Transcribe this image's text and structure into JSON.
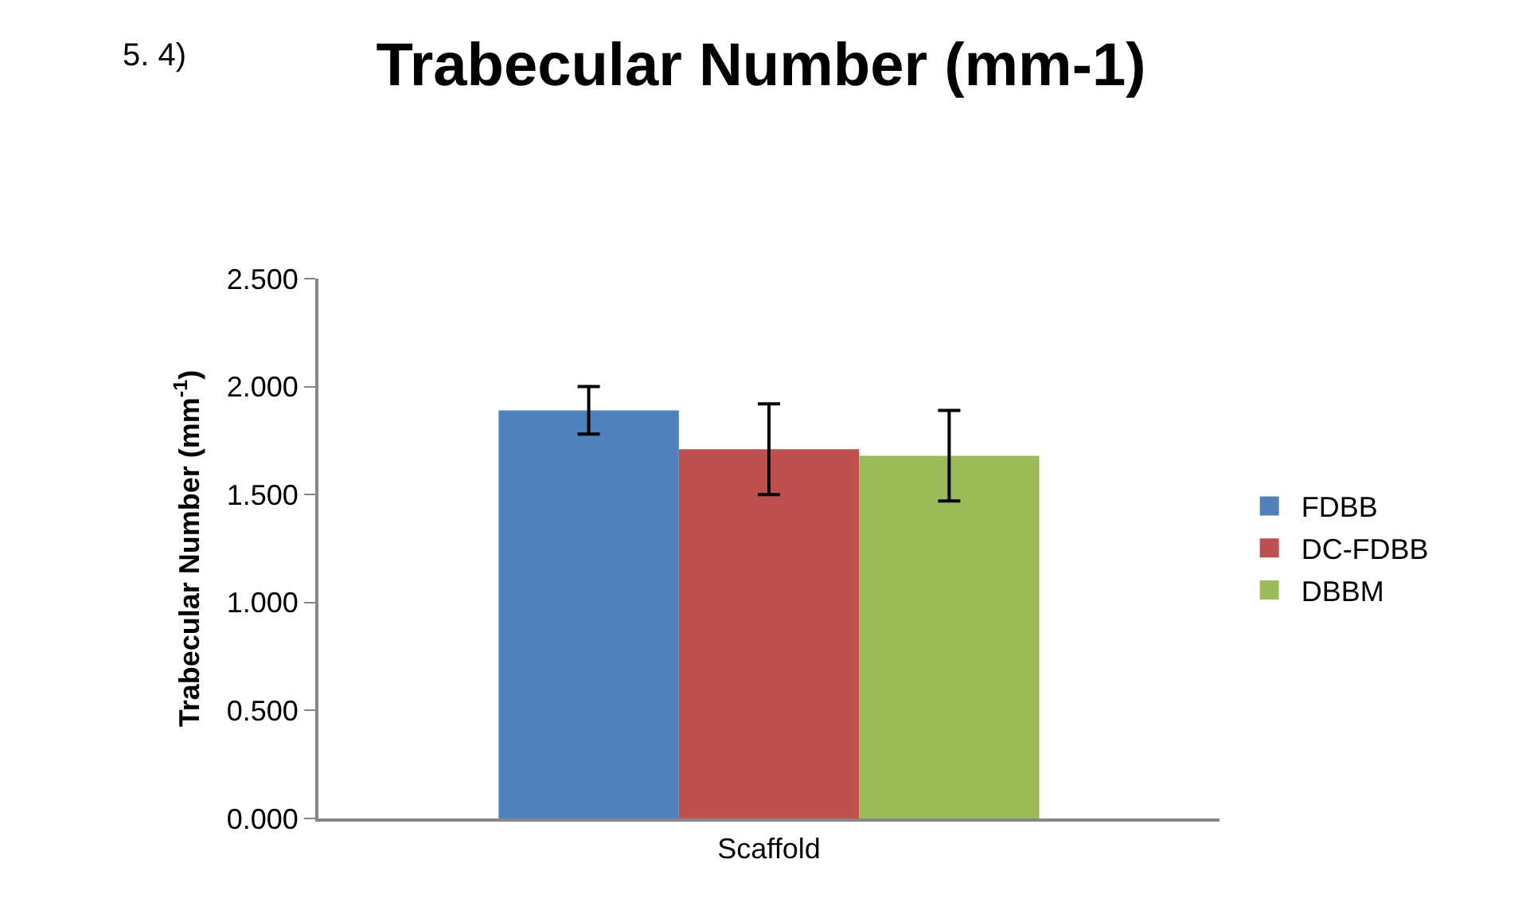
{
  "chart_data": {
    "type": "bar",
    "title": "Trabecular Number (mm-1)",
    "annotations": [
      "5. 4)"
    ],
    "xlabel": "Scaffold",
    "ylabel": "Trabecular Number (mm$^{-1}$)",
    "categories": [
      null
    ],
    "series": [
      {
        "name": "FDBB",
        "color": "#4f81bd",
        "values": [
          1.89
        ],
        "errors": [
          0.11
        ]
      },
      {
        "name": "DC-FDBB",
        "color": "#c0504d",
        "values": [
          1.71
        ],
        "errors": [
          0.21
        ]
      },
      {
        "name": "DBBM",
        "color": "#9bbb59",
        "values": [
          1.68
        ],
        "errors": [
          0.21
        ]
      }
    ],
    "ylim": [
      0,
      2.5
    ],
    "yticks": [
      {
        "value": 0,
        "label": "0.000"
      },
      {
        "value": 0.5,
        "label": "0.500"
      },
      {
        "value": 1,
        "label": "1.000"
      },
      {
        "value": 1.5,
        "label": "1.500"
      },
      {
        "value": 2,
        "label": "2.000"
      },
      {
        "value": 2.5,
        "label": "2.500"
      }
    ],
    "legend": "right"
  }
}
